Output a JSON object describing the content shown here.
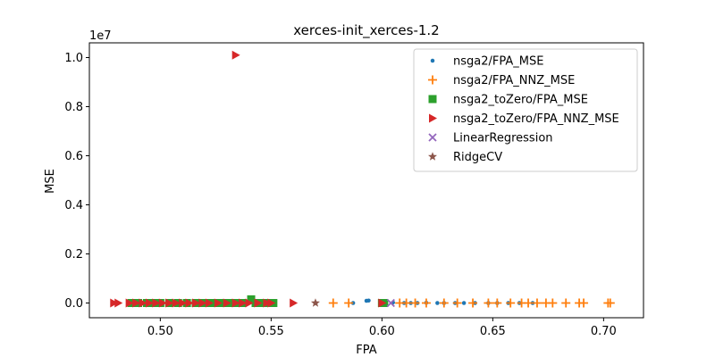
{
  "chart_data": {
    "type": "scatter",
    "title": "xerces-init_xerces-1.2",
    "xlabel": "FPA",
    "ylabel": "MSE",
    "y_offset_label": "1e7",
    "xlim": [
      0.468,
      0.718
    ],
    "ylim": [
      -0.6,
      10.6
    ],
    "y_unit_scale": "1e7",
    "xticks": [
      0.5,
      0.55,
      0.6,
      0.65,
      0.7
    ],
    "xtick_labels": [
      "0.50",
      "0.55",
      "0.60",
      "0.65",
      "0.70"
    ],
    "yticks": [
      0.0,
      0.2,
      0.4,
      0.6,
      0.8,
      1.0
    ],
    "ytick_labels": [
      "0.0",
      "0.2",
      "0.4",
      "0.6",
      "0.8",
      "1.0"
    ],
    "grid": false,
    "legend_position": "top-right",
    "series": [
      {
        "name": "nsga2/FPA_MSE",
        "marker": "circle",
        "color": "#1f77b4",
        "x": [
          0.587,
          0.593,
          0.594,
          0.6,
          0.605,
          0.61,
          0.613,
          0.616,
          0.62,
          0.625,
          0.628,
          0.633,
          0.637,
          0.642,
          0.648,
          0.652,
          0.657,
          0.662,
          0.668
        ],
        "y": [
          0.0,
          0.009,
          0.01,
          0.0,
          0.002,
          0.0,
          0.0,
          0.0,
          0.001,
          0.0,
          0.0,
          0.0,
          0.0,
          0.0,
          0.0,
          0.0,
          0.0,
          0.0,
          0.0
        ]
      },
      {
        "name": "nsga2/FPA_NNZ_MSE",
        "marker": "plus",
        "color": "#ff7f0e",
        "x": [
          0.578,
          0.585,
          0.608,
          0.611,
          0.615,
          0.62,
          0.628,
          0.634,
          0.641,
          0.648,
          0.652,
          0.658,
          0.663,
          0.666,
          0.67,
          0.674,
          0.677,
          0.683,
          0.689,
          0.691,
          0.702,
          0.703
        ],
        "y": [
          0.0,
          0.0,
          0.0,
          0.0,
          0.0,
          0.0,
          0.0,
          0.0,
          0.0,
          0.0,
          0.0,
          0.0,
          0.0,
          0.0,
          0.0,
          0.0,
          0.0,
          0.0,
          0.0,
          0.0,
          0.0,
          0.0
        ]
      },
      {
        "name": "nsga2_toZero/FPA_MSE",
        "marker": "square",
        "color": "#2ca02c",
        "x": [
          0.487,
          0.49,
          0.494,
          0.497,
          0.5,
          0.504,
          0.508,
          0.512,
          0.516,
          0.519,
          0.522,
          0.525,
          0.528,
          0.531,
          0.534,
          0.537,
          0.541,
          0.543,
          0.546,
          0.549,
          0.551,
          0.6,
          0.601
        ],
        "y": [
          0.0,
          0.0,
          0.0,
          0.0,
          0.0,
          0.0,
          0.0,
          0.0,
          0.0,
          0.0,
          0.0,
          0.0,
          0.0,
          0.0,
          0.0,
          0.0,
          0.015,
          0.0,
          0.0,
          0.0,
          0.0,
          0.0,
          0.0
        ]
      },
      {
        "name": "nsga2_toZero/FPA_NNZ_MSE",
        "marker": "triangle-right",
        "color": "#d62728",
        "x": [
          0.479,
          0.481,
          0.486,
          0.489,
          0.492,
          0.495,
          0.498,
          0.501,
          0.504,
          0.507,
          0.51,
          0.513,
          0.516,
          0.519,
          0.522,
          0.526,
          0.53,
          0.534,
          0.537,
          0.54,
          0.544,
          0.548,
          0.55,
          0.56,
          0.6,
          0.534
        ],
        "y": [
          0.0,
          0.0,
          0.0,
          0.0,
          0.0,
          0.0,
          0.0,
          0.0,
          0.0,
          0.0,
          0.0,
          0.0,
          0.0,
          0.0,
          0.0,
          0.0,
          0.0,
          0.0,
          0.0,
          0.0,
          0.0,
          0.0,
          0.0,
          0.0,
          0.0,
          1.01
        ]
      },
      {
        "name": "LinearRegression",
        "marker": "x",
        "color": "#9467bd",
        "x": [
          0.604
        ],
        "y": [
          0.0
        ]
      },
      {
        "name": "RidgeCV",
        "marker": "star",
        "color": "#8c564b",
        "x": [
          0.57
        ],
        "y": [
          0.0
        ]
      }
    ]
  }
}
